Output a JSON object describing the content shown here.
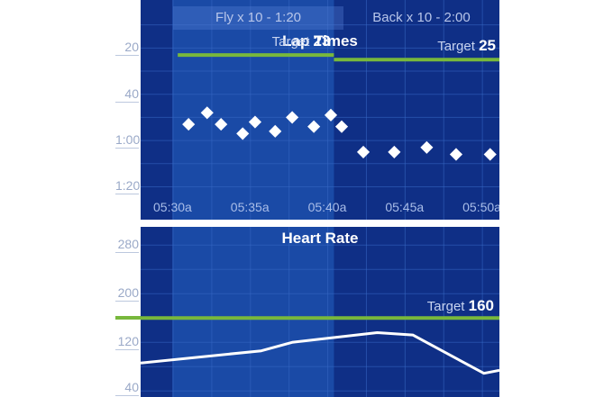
{
  "tabs": [
    {
      "label": "Fly  x 10 - 1:20",
      "active": true
    },
    {
      "label": "Back  x 10 - 2:00",
      "active": false
    }
  ],
  "colors": {
    "panel_bg": "#0f2f86",
    "panel_bg_active": "#1a4aa6",
    "grid": "#3768c4",
    "target_line": "#78b83c",
    "marker": "#ffffff",
    "hr_line": "#ffffff"
  },
  "chart_data": [
    {
      "type": "scatter",
      "title": "Lap Times",
      "y_ticks": [
        "20",
        "40",
        "1:00",
        "1:20"
      ],
      "y_ticks_seconds": [
        20,
        40,
        60,
        80
      ],
      "ylim_seconds": [
        0,
        88
      ],
      "y_inverted": true,
      "x_ticks": [
        "05:30a",
        "05:35a",
        "05:40a",
        "05:45a",
        "05:50a"
      ],
      "x_ticks_minutes": [
        330,
        335,
        340,
        345,
        350
      ],
      "xlim_minutes": [
        327.9,
        351.1
      ],
      "targets": [
        {
          "label": "Target",
          "value": "23",
          "seconds": 23,
          "x_from": 330.3,
          "x_to": 340.4
        },
        {
          "label": "Target",
          "value": "25",
          "seconds": 25,
          "x_from": 340.4,
          "x_to": 351.1
        }
      ],
      "points": [
        {
          "x": 331.0,
          "y": 53
        },
        {
          "x": 332.2,
          "y": 48
        },
        {
          "x": 333.1,
          "y": 53
        },
        {
          "x": 334.5,
          "y": 57
        },
        {
          "x": 335.3,
          "y": 52
        },
        {
          "x": 336.6,
          "y": 56
        },
        {
          "x": 337.7,
          "y": 50
        },
        {
          "x": 339.1,
          "y": 54
        },
        {
          "x": 340.2,
          "y": 49
        },
        {
          "x": 340.9,
          "y": 54
        },
        {
          "x": 342.3,
          "y": 65
        },
        {
          "x": 344.3,
          "y": 65
        },
        {
          "x": 346.4,
          "y": 63
        },
        {
          "x": 348.3,
          "y": 66
        },
        {
          "x": 350.5,
          "y": 66
        }
      ]
    },
    {
      "type": "line",
      "title": "Heart Rate",
      "y_ticks": [
        "280",
        "200",
        "120",
        "40"
      ],
      "y_ticks_values": [
        280,
        200,
        120,
        40
      ],
      "ylim": [
        30,
        310
      ],
      "targets": [
        {
          "label": "Target",
          "value": "160",
          "bpm": 160
        }
      ],
      "points": [
        {
          "x": 327.9,
          "y": 86
        },
        {
          "x": 335.7,
          "y": 106
        },
        {
          "x": 337.7,
          "y": 120
        },
        {
          "x": 343.2,
          "y": 136
        },
        {
          "x": 345.5,
          "y": 132
        },
        {
          "x": 350.1,
          "y": 69
        },
        {
          "x": 351.1,
          "y": 74
        }
      ]
    }
  ]
}
